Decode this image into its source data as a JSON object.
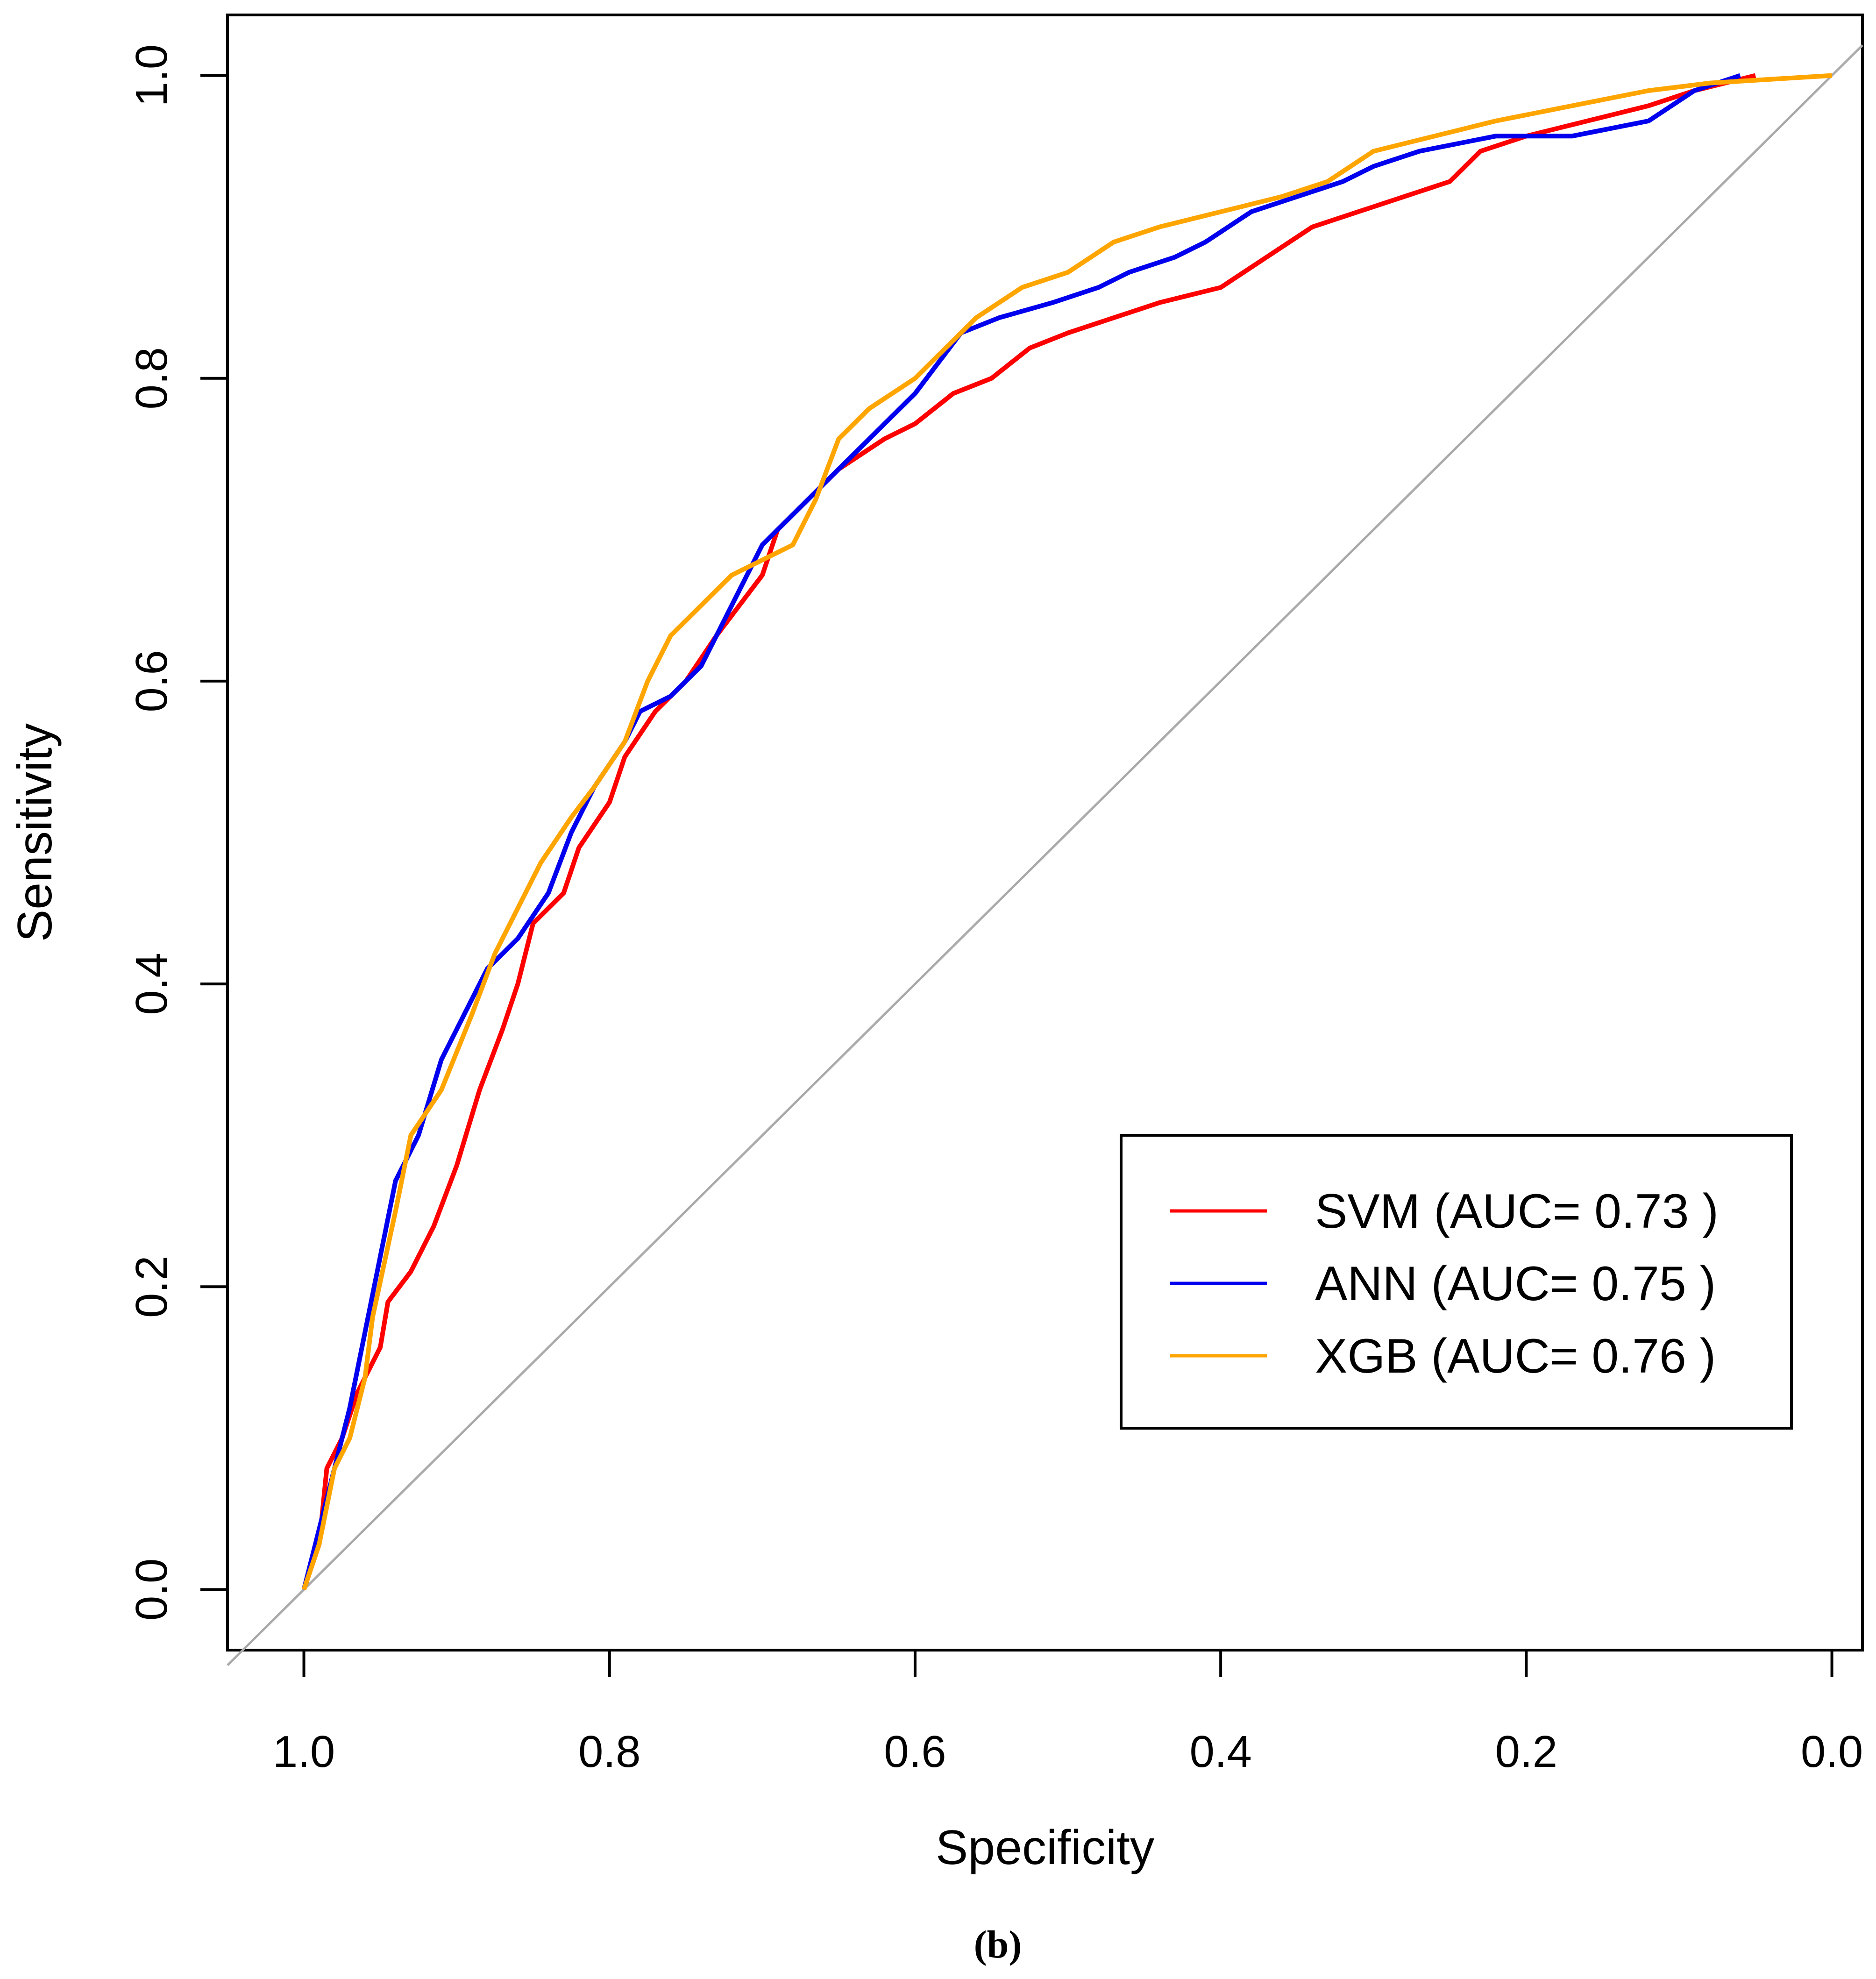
{
  "chart_data": {
    "type": "line",
    "xlabel": "Specificity",
    "ylabel": "Sensitivity",
    "xlim": [
      1.05,
      -0.02
    ],
    "ylim": [
      -0.04,
      1.04
    ],
    "x_reversed": true,
    "x_ticks": [
      1.0,
      0.8,
      0.6,
      0.4,
      0.2,
      0.0
    ],
    "x_tick_labels": [
      "1.0",
      "0.8",
      "0.6",
      "0.4",
      "0.2",
      "0.0"
    ],
    "y_ticks": [
      0.0,
      0.2,
      0.4,
      0.6,
      0.8,
      1.0
    ],
    "y_tick_labels": [
      "0.0",
      "0.2",
      "0.4",
      "0.6",
      "0.8",
      "1.0"
    ],
    "grid": false,
    "legend_position": "bottom-right",
    "diagonal_color": "#aaaaaa",
    "panel_label": "(b)",
    "series": [
      {
        "name": "SVM (AUC= 0.73 )",
        "color": "#ff0000",
        "points": [
          [
            1.0,
            0.0
          ],
          [
            0.99,
            0.03
          ],
          [
            0.985,
            0.08
          ],
          [
            0.975,
            0.1
          ],
          [
            0.965,
            0.13
          ],
          [
            0.95,
            0.16
          ],
          [
            0.945,
            0.19
          ],
          [
            0.93,
            0.21
          ],
          [
            0.915,
            0.24
          ],
          [
            0.9,
            0.28
          ],
          [
            0.885,
            0.33
          ],
          [
            0.87,
            0.37
          ],
          [
            0.86,
            0.4
          ],
          [
            0.85,
            0.44
          ],
          [
            0.83,
            0.46
          ],
          [
            0.82,
            0.49
          ],
          [
            0.8,
            0.52
          ],
          [
            0.79,
            0.55
          ],
          [
            0.77,
            0.58
          ],
          [
            0.75,
            0.6
          ],
          [
            0.73,
            0.63
          ],
          [
            0.715,
            0.65
          ],
          [
            0.7,
            0.67
          ],
          [
            0.69,
            0.7
          ],
          [
            0.67,
            0.72
          ],
          [
            0.65,
            0.74
          ],
          [
            0.62,
            0.76
          ],
          [
            0.6,
            0.77
          ],
          [
            0.575,
            0.79
          ],
          [
            0.55,
            0.8
          ],
          [
            0.525,
            0.82
          ],
          [
            0.5,
            0.83
          ],
          [
            0.47,
            0.84
          ],
          [
            0.44,
            0.85
          ],
          [
            0.4,
            0.86
          ],
          [
            0.37,
            0.88
          ],
          [
            0.34,
            0.9
          ],
          [
            0.31,
            0.91
          ],
          [
            0.28,
            0.92
          ],
          [
            0.25,
            0.93
          ],
          [
            0.23,
            0.95
          ],
          [
            0.2,
            0.96
          ],
          [
            0.16,
            0.97
          ],
          [
            0.12,
            0.98
          ],
          [
            0.09,
            0.99
          ],
          [
            0.05,
            1.0
          ]
        ]
      },
      {
        "name": "ANN (AUC= 0.75 )",
        "color": "#0000ee",
        "points": [
          [
            1.0,
            0.0
          ],
          [
            0.99,
            0.04
          ],
          [
            0.98,
            0.08
          ],
          [
            0.97,
            0.12
          ],
          [
            0.96,
            0.17
          ],
          [
            0.95,
            0.22
          ],
          [
            0.94,
            0.27
          ],
          [
            0.925,
            0.3
          ],
          [
            0.91,
            0.35
          ],
          [
            0.895,
            0.38
          ],
          [
            0.88,
            0.41
          ],
          [
            0.86,
            0.43
          ],
          [
            0.84,
            0.46
          ],
          [
            0.825,
            0.5
          ],
          [
            0.81,
            0.53
          ],
          [
            0.79,
            0.56
          ],
          [
            0.78,
            0.58
          ],
          [
            0.76,
            0.59
          ],
          [
            0.74,
            0.61
          ],
          [
            0.73,
            0.63
          ],
          [
            0.71,
            0.67
          ],
          [
            0.7,
            0.69
          ],
          [
            0.68,
            0.71
          ],
          [
            0.66,
            0.73
          ],
          [
            0.64,
            0.75
          ],
          [
            0.62,
            0.77
          ],
          [
            0.6,
            0.79
          ],
          [
            0.585,
            0.81
          ],
          [
            0.57,
            0.83
          ],
          [
            0.545,
            0.84
          ],
          [
            0.51,
            0.85
          ],
          [
            0.48,
            0.86
          ],
          [
            0.46,
            0.87
          ],
          [
            0.43,
            0.88
          ],
          [
            0.41,
            0.89
          ],
          [
            0.38,
            0.91
          ],
          [
            0.35,
            0.92
          ],
          [
            0.32,
            0.93
          ],
          [
            0.3,
            0.94
          ],
          [
            0.27,
            0.95
          ],
          [
            0.22,
            0.96
          ],
          [
            0.17,
            0.96
          ],
          [
            0.12,
            0.97
          ],
          [
            0.09,
            0.99
          ],
          [
            0.06,
            1.0
          ]
        ]
      },
      {
        "name": "XGB (AUC= 0.76 )",
        "color": "#ffa500",
        "points": [
          [
            1.0,
            0.0
          ],
          [
            0.99,
            0.03
          ],
          [
            0.98,
            0.08
          ],
          [
            0.97,
            0.1
          ],
          [
            0.96,
            0.14
          ],
          [
            0.955,
            0.18
          ],
          [
            0.94,
            0.25
          ],
          [
            0.93,
            0.3
          ],
          [
            0.91,
            0.33
          ],
          [
            0.89,
            0.38
          ],
          [
            0.875,
            0.42
          ],
          [
            0.86,
            0.45
          ],
          [
            0.845,
            0.48
          ],
          [
            0.825,
            0.51
          ],
          [
            0.81,
            0.53
          ],
          [
            0.79,
            0.56
          ],
          [
            0.775,
            0.6
          ],
          [
            0.76,
            0.63
          ],
          [
            0.74,
            0.65
          ],
          [
            0.72,
            0.67
          ],
          [
            0.7,
            0.68
          ],
          [
            0.68,
            0.69
          ],
          [
            0.665,
            0.72
          ],
          [
            0.65,
            0.76
          ],
          [
            0.63,
            0.78
          ],
          [
            0.6,
            0.8
          ],
          [
            0.58,
            0.82
          ],
          [
            0.56,
            0.84
          ],
          [
            0.53,
            0.86
          ],
          [
            0.5,
            0.87
          ],
          [
            0.47,
            0.89
          ],
          [
            0.44,
            0.9
          ],
          [
            0.4,
            0.91
          ],
          [
            0.36,
            0.92
          ],
          [
            0.33,
            0.93
          ],
          [
            0.3,
            0.95
          ],
          [
            0.26,
            0.96
          ],
          [
            0.22,
            0.97
          ],
          [
            0.17,
            0.98
          ],
          [
            0.12,
            0.99
          ],
          [
            0.08,
            0.995
          ],
          [
            0.0,
            1.0
          ]
        ]
      }
    ]
  }
}
